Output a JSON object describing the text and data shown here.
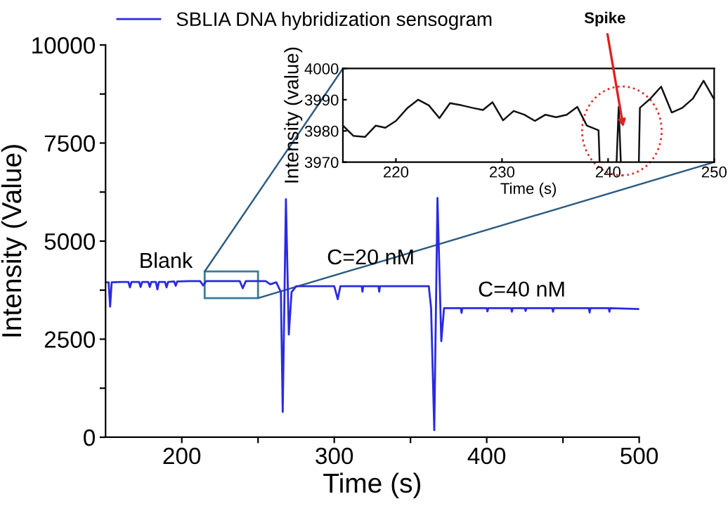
{
  "chart_data": [
    {
      "type": "line",
      "xlabel": "Time (s)",
      "ylabel": "Intensity (Value)",
      "legend": "top left",
      "grid": false,
      "marker": "none",
      "line_style": "solid",
      "xlim": [
        150,
        500
      ],
      "xticks": [
        200,
        {
          "value": 250,
          "label": null
        },
        300,
        {
          "value": 350,
          "label": null
        },
        400,
        {
          "value": 450,
          "label": null
        },
        500
      ],
      "ylim": [
        0,
        10000
      ],
      "yticks": [
        0,
        {
          "value": 1250,
          "label": null
        },
        2500,
        {
          "value": 3750,
          "label": null
        },
        5000,
        {
          "value": 6250,
          "label": null
        },
        7500,
        {
          "value": 8750,
          "label": null
        },
        10000
      ],
      "annotations": [
        "Blank",
        "C=20 nM",
        "C=40 nM"
      ],
      "series": [
        {
          "name": "SBLIA DNA hybridization sensogram",
          "color": "#2a2ae0",
          "x": [
            150,
            152,
            153,
            154,
            160,
            165,
            166,
            167,
            172,
            173,
            174,
            178,
            179,
            180,
            183,
            184,
            185,
            189,
            190,
            191,
            195,
            196,
            197,
            205,
            212,
            214,
            216,
            225,
            238,
            240,
            242,
            255,
            258,
            262,
            265,
            266.2,
            268.3,
            270.2,
            272,
            275,
            300,
            302.3,
            304,
            318,
            318.5,
            319,
            329,
            329.5,
            330,
            362,
            363.5,
            365.6,
            367.7,
            370.2,
            372,
            383,
            383.5,
            384,
            400,
            400.5,
            401,
            416,
            416.5,
            417,
            425,
            425.5,
            426,
            443,
            443.5,
            444,
            467,
            467.5,
            468,
            480,
            480.5,
            481,
            500
          ],
          "values": [
            3950,
            3950,
            3330,
            3950,
            3960,
            3960,
            3820,
            3960,
            3960,
            3830,
            3960,
            3960,
            3830,
            3960,
            3960,
            3770,
            3960,
            3960,
            3820,
            3960,
            3970,
            3860,
            3970,
            3980,
            3980,
            3870,
            3980,
            3980,
            3980,
            3800,
            3980,
            3980,
            3900,
            3950,
            3700,
            645,
            6070,
            2620,
            3700,
            3850,
            3850,
            3520,
            3850,
            3850,
            3710,
            3850,
            3850,
            3710,
            3850,
            3850,
            3300,
            180,
            6100,
            2450,
            3290,
            3290,
            3170,
            3290,
            3290,
            3210,
            3290,
            3290,
            3200,
            3290,
            3290,
            3220,
            3290,
            3290,
            3200,
            3290,
            3290,
            3180,
            3290,
            3290,
            3200,
            3290,
            3270
          ]
        }
      ]
    },
    {
      "type": "line",
      "xlabel": "Time (s)",
      "ylabel": "Intensity (value)",
      "grid": false,
      "marker": "none",
      "line_style": "solid",
      "xlim": [
        215,
        250
      ],
      "xticks": [
        220,
        230,
        240,
        250
      ],
      "ylim": [
        3970,
        4000
      ],
      "yticks": [
        3970,
        3980,
        3990,
        4000
      ],
      "annotations": [
        {
          "text": "Spike",
          "x": 241.5,
          "y": 3980
        }
      ],
      "series": [
        {
          "color": "#111111",
          "x": [
            215,
            216,
            217.1,
            218.1,
            219,
            220,
            221.1,
            222.1,
            223.1,
            224.1,
            225.1,
            226.2,
            227.2,
            228.2,
            229.1,
            230.1,
            231.1,
            232.1,
            233.1,
            234.1,
            235.1,
            236.1,
            237.1,
            238,
            239.1,
            239.2,
            240,
            240.8,
            241,
            241.2,
            242,
            242.9,
            243,
            244,
            245,
            246,
            247,
            248,
            249,
            250
          ],
          "values": [
            3981.7,
            3978.4,
            3978.1,
            3981.7,
            3981,
            3983.2,
            3987.4,
            3990,
            3988.2,
            3984.1,
            3988.9,
            3988.2,
            3987.4,
            3986.7,
            3989.2,
            3983.4,
            3986.4,
            3985.2,
            3983.2,
            3985.2,
            3984.4,
            3985.2,
            3987.7,
            3981.7,
            3980.2,
            3970,
            null,
            3970,
            3987.7,
            3970,
            null,
            3970,
            3987.4,
            3990.4,
            3994.2,
            3985.9,
            3987.4,
            3990.4,
            3996.1,
            3990.1
          ]
        }
      ]
    }
  ]
}
